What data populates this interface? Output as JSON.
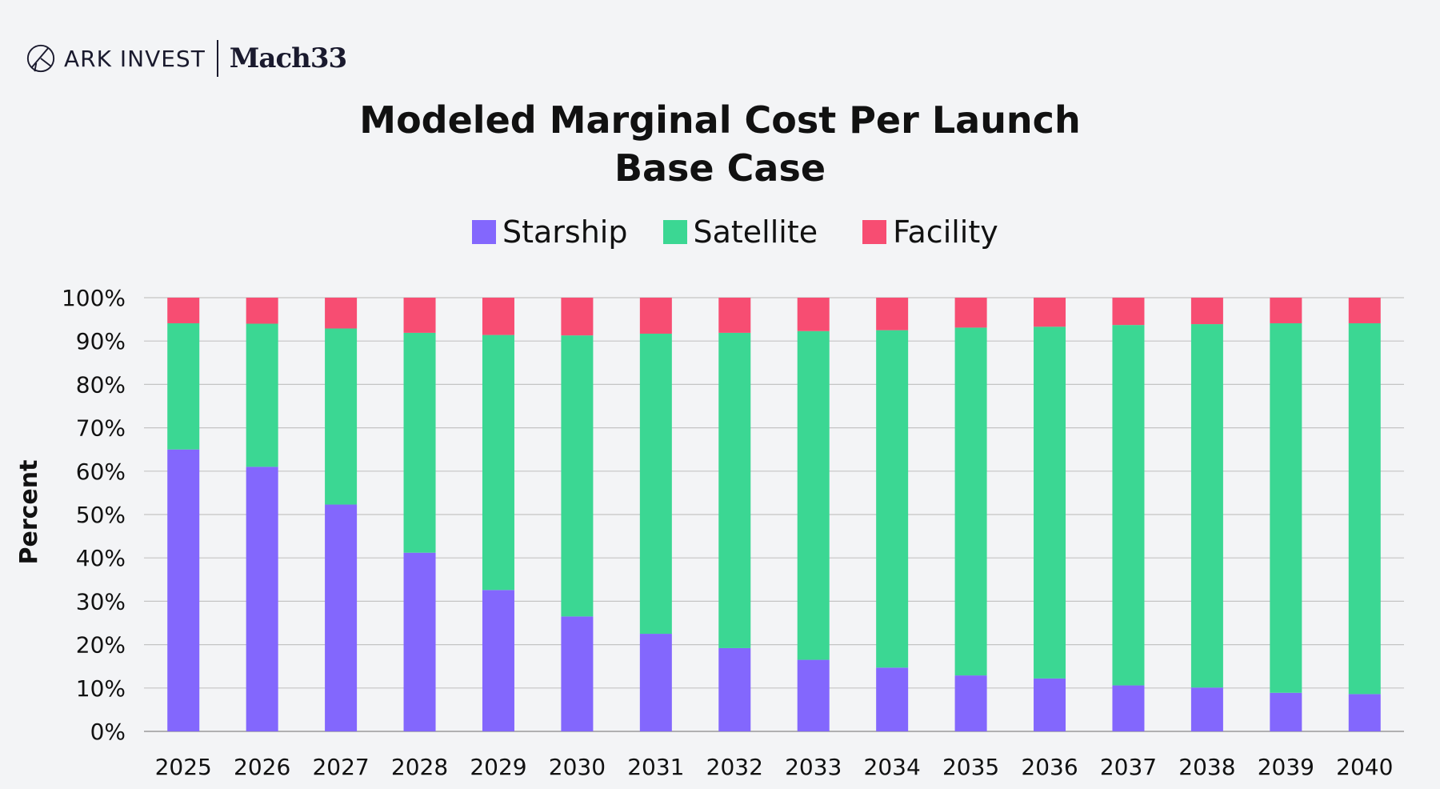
{
  "logos": {
    "ark_text": "ARK INVEST",
    "mach_text": "Mach33"
  },
  "chart_data": {
    "type": "bar",
    "stacked": true,
    "title": "Modeled Marginal Cost Per Launch",
    "subtitle": "Base Case",
    "xlabel": "",
    "ylabel": "Percent",
    "ylim": [
      0,
      100
    ],
    "yticks": [
      0,
      10,
      20,
      30,
      40,
      50,
      60,
      70,
      80,
      90,
      100
    ],
    "ytick_suffix": "%",
    "grid": true,
    "legend_placement": "top-center",
    "categories": [
      "2025",
      "2026",
      "2027",
      "2028",
      "2029",
      "2030",
      "2031",
      "2032",
      "2033",
      "2034",
      "2035",
      "2036",
      "2037",
      "2038",
      "2039",
      "2040"
    ],
    "series": [
      {
        "name": "Starship",
        "color": "#8367fd",
        "values": [
          65,
          61,
          52.3,
          41.2,
          32.6,
          26.5,
          22.5,
          19.2,
          16.5,
          14.7,
          12.9,
          12.2,
          10.6,
          10.1,
          8.9,
          8.6
        ]
      },
      {
        "name": "Satellite",
        "color": "#3bd793",
        "values": [
          29.1,
          33,
          40.6,
          50.7,
          58.8,
          64.8,
          69.2,
          72.7,
          75.8,
          77.8,
          80.2,
          81.1,
          83.1,
          83.8,
          85.2,
          85.5
        ]
      },
      {
        "name": "Facility",
        "color": "#f74d72",
        "values": [
          5.9,
          6,
          7.1,
          8.1,
          8.6,
          8.7,
          8.3,
          8.1,
          7.7,
          7.5,
          6.9,
          6.7,
          6.3,
          6.1,
          5.9,
          5.9
        ]
      }
    ]
  }
}
